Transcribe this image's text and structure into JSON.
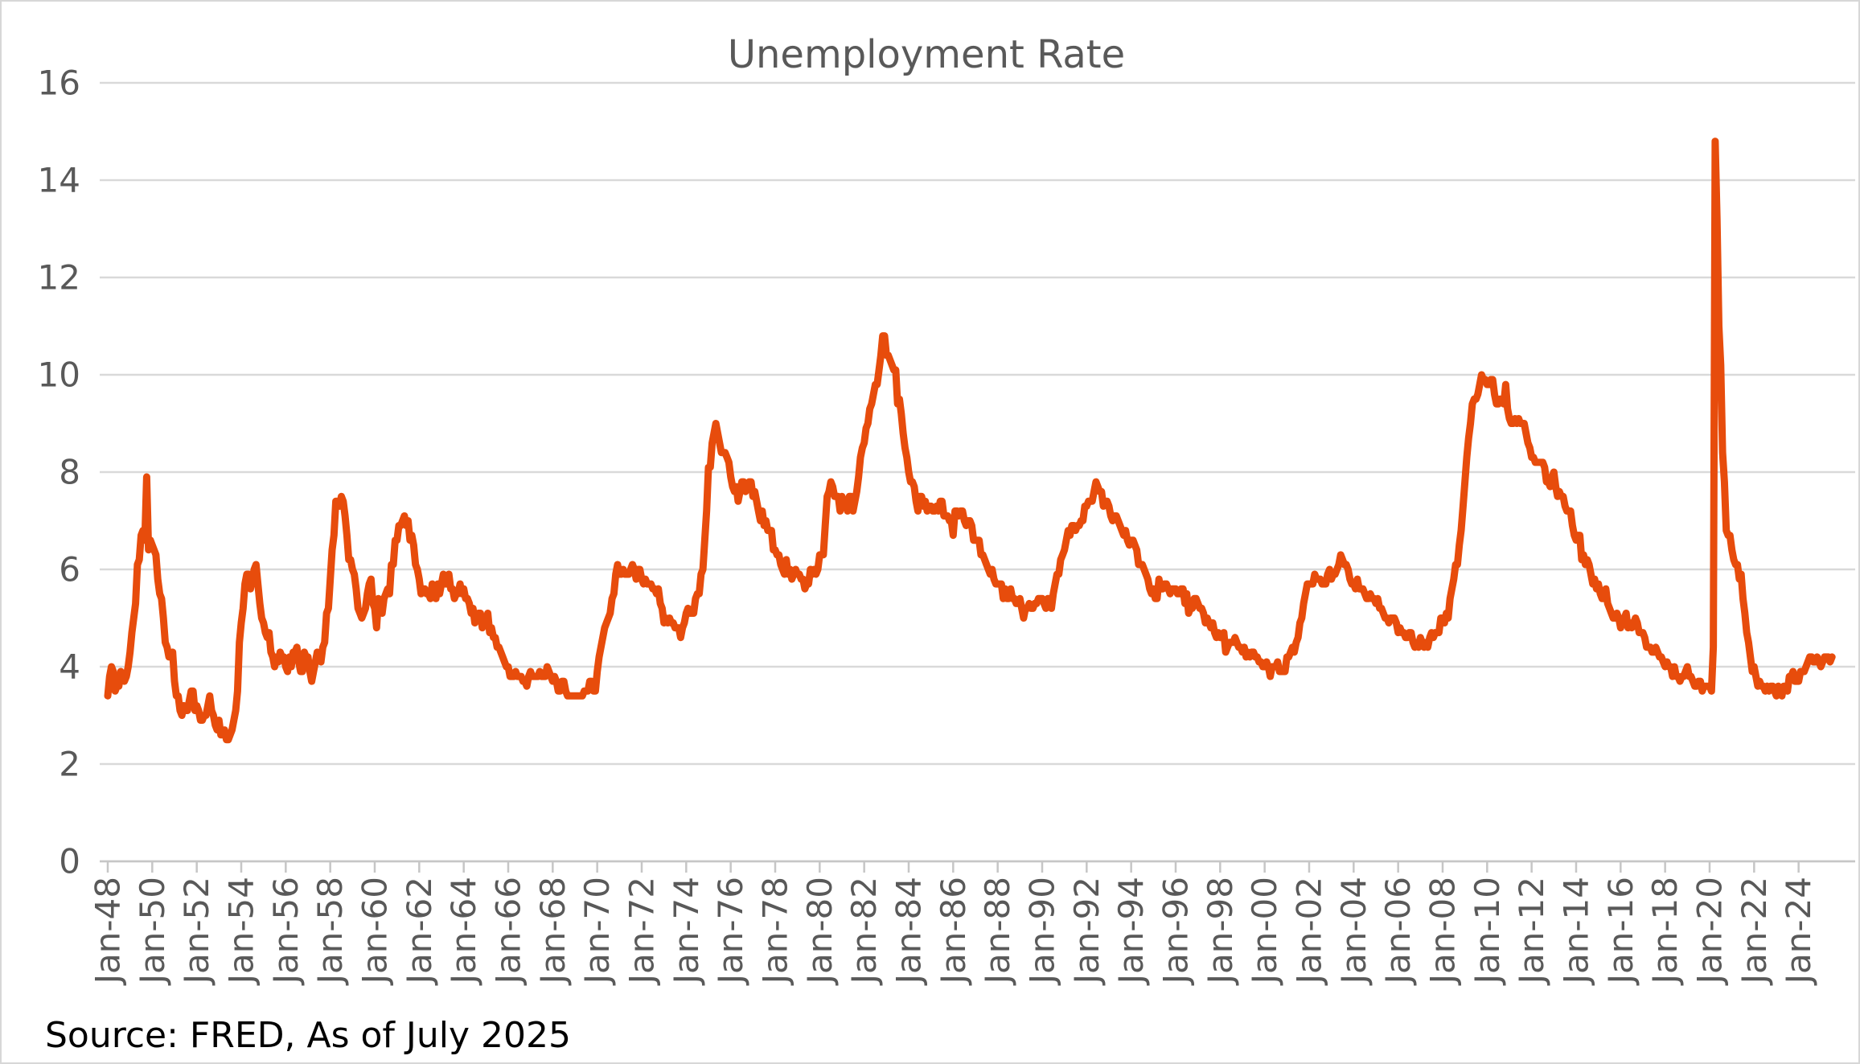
{
  "page": {
    "source_note": "Source: FRED, As of July 2025"
  },
  "colors": {
    "line": "#E74C0C",
    "gridline": "#D9D9D9",
    "axis_line": "#C6C6C6",
    "axis_text": "#595959",
    "title_text": "#595959",
    "source_text": "#000000",
    "background": "#FFFFFF",
    "border": "#D7D7D7"
  },
  "chart_data": {
    "type": "line",
    "title": "Unemployment Rate",
    "series_name": "Unemployment Rate",
    "unit": "percent",
    "frequency": "monthly",
    "x_start": "Jan-1948",
    "x_end": "Jul-2025",
    "grid": "horizontal",
    "legend": "none",
    "ylim": [
      0,
      16
    ],
    "y_ticks": [
      0,
      2,
      4,
      6,
      8,
      10,
      12,
      14,
      16
    ],
    "x_tick_labels": [
      "Jan-48",
      "Jan-50",
      "Jan-52",
      "Jan-54",
      "Jan-56",
      "Jan-58",
      "Jan-60",
      "Jan-62",
      "Jan-64",
      "Jan-66",
      "Jan-68",
      "Jan-70",
      "Jan-72",
      "Jan-74",
      "Jan-76",
      "Jan-78",
      "Jan-80",
      "Jan-82",
      "Jan-84",
      "Jan-86",
      "Jan-88",
      "Jan-90",
      "Jan-92",
      "Jan-94",
      "Jan-96",
      "Jan-98",
      "Jan-00",
      "Jan-02",
      "Jan-04",
      "Jan-06",
      "Jan-08",
      "Jan-10",
      "Jan-12",
      "Jan-14",
      "Jan-16",
      "Jan-18",
      "Jan-20",
      "Jan-22",
      "Jan-24"
    ],
    "values": [
      3.4,
      3.8,
      4.0,
      3.9,
      3.5,
      3.6,
      3.6,
      3.9,
      3.8,
      3.7,
      3.8,
      4.0,
      4.3,
      4.7,
      5.0,
      5.3,
      6.1,
      6.2,
      6.7,
      6.8,
      6.6,
      7.9,
      6.4,
      6.6,
      6.5,
      6.4,
      6.3,
      5.8,
      5.5,
      5.4,
      5.0,
      4.5,
      4.4,
      4.2,
      4.2,
      4.3,
      3.7,
      3.4,
      3.4,
      3.1,
      3.0,
      3.2,
      3.1,
      3.1,
      3.3,
      3.5,
      3.5,
      3.1,
      3.2,
      3.1,
      2.9,
      2.9,
      3.0,
      3.0,
      3.2,
      3.4,
      3.1,
      3.0,
      2.8,
      2.7,
      2.9,
      2.6,
      2.6,
      2.7,
      2.5,
      2.5,
      2.6,
      2.7,
      2.9,
      3.1,
      3.5,
      4.5,
      4.9,
      5.2,
      5.7,
      5.9,
      5.9,
      5.6,
      5.8,
      6.0,
      6.1,
      5.7,
      5.3,
      5.0,
      4.9,
      4.7,
      4.6,
      4.7,
      4.3,
      4.2,
      4.0,
      4.2,
      4.1,
      4.3,
      4.2,
      4.2,
      4.0,
      3.9,
      4.2,
      4.0,
      4.3,
      4.3,
      4.4,
      4.1,
      3.9,
      3.9,
      4.3,
      4.2,
      4.2,
      3.9,
      3.7,
      3.9,
      4.1,
      4.3,
      4.2,
      4.1,
      4.4,
      4.5,
      5.1,
      5.2,
      5.8,
      6.4,
      6.7,
      7.4,
      7.4,
      7.3,
      7.5,
      7.4,
      7.1,
      6.7,
      6.2,
      6.2,
      6.0,
      5.9,
      5.6,
      5.2,
      5.1,
      5.0,
      5.1,
      5.2,
      5.5,
      5.7,
      5.8,
      5.3,
      5.2,
      4.8,
      5.4,
      5.2,
      5.1,
      5.4,
      5.5,
      5.6,
      5.5,
      6.1,
      6.1,
      6.6,
      6.6,
      6.9,
      6.9,
      7.0,
      7.1,
      6.9,
      7.0,
      6.6,
      6.7,
      6.5,
      6.1,
      6.0,
      5.8,
      5.5,
      5.6,
      5.6,
      5.5,
      5.5,
      5.4,
      5.7,
      5.6,
      5.4,
      5.7,
      5.5,
      5.7,
      5.9,
      5.7,
      5.7,
      5.9,
      5.6,
      5.6,
      5.4,
      5.5,
      5.5,
      5.7,
      5.5,
      5.6,
      5.4,
      5.4,
      5.3,
      5.1,
      5.2,
      4.9,
      5.0,
      5.1,
      5.1,
      4.8,
      5.0,
      4.9,
      5.1,
      4.7,
      4.8,
      4.6,
      4.6,
      4.4,
      4.4,
      4.3,
      4.2,
      4.1,
      4.0,
      4.0,
      3.8,
      3.8,
      3.8,
      3.9,
      3.8,
      3.8,
      3.8,
      3.7,
      3.7,
      3.6,
      3.8,
      3.9,
      3.8,
      3.8,
      3.8,
      3.8,
      3.9,
      3.8,
      3.8,
      3.8,
      4.0,
      3.9,
      3.8,
      3.7,
      3.8,
      3.7,
      3.5,
      3.5,
      3.7,
      3.7,
      3.5,
      3.4,
      3.4,
      3.4,
      3.4,
      3.4,
      3.4,
      3.4,
      3.4,
      3.4,
      3.5,
      3.5,
      3.5,
      3.7,
      3.7,
      3.5,
      3.5,
      3.9,
      4.2,
      4.4,
      4.6,
      4.8,
      4.9,
      5.0,
      5.1,
      5.4,
      5.5,
      5.9,
      6.1,
      5.9,
      5.9,
      6.0,
      5.9,
      5.9,
      5.9,
      6.0,
      6.1,
      6.0,
      5.8,
      6.0,
      6.0,
      5.8,
      5.7,
      5.8,
      5.7,
      5.7,
      5.7,
      5.6,
      5.6,
      5.5,
      5.6,
      5.3,
      5.2,
      4.9,
      5.0,
      4.9,
      5.0,
      4.9,
      4.9,
      4.8,
      4.8,
      4.8,
      4.6,
      4.8,
      4.9,
      5.1,
      5.2,
      5.1,
      5.1,
      5.1,
      5.4,
      5.5,
      5.5,
      5.9,
      6.0,
      6.6,
      7.2,
      8.1,
      8.1,
      8.6,
      8.8,
      9.0,
      8.8,
      8.6,
      8.4,
      8.4,
      8.4,
      8.3,
      8.2,
      7.9,
      7.7,
      7.6,
      7.7,
      7.4,
      7.6,
      7.8,
      7.8,
      7.6,
      7.7,
      7.8,
      7.8,
      7.5,
      7.6,
      7.4,
      7.2,
      7.0,
      7.2,
      6.9,
      7.0,
      6.8,
      6.8,
      6.8,
      6.4,
      6.4,
      6.3,
      6.3,
      6.1,
      6.0,
      5.9,
      6.2,
      5.9,
      6.0,
      5.8,
      5.9,
      6.0,
      5.9,
      5.9,
      5.8,
      5.8,
      5.6,
      5.7,
      5.7,
      6.0,
      5.9,
      6.0,
      5.9,
      6.0,
      6.3,
      6.3,
      6.3,
      6.9,
      7.5,
      7.6,
      7.8,
      7.7,
      7.5,
      7.5,
      7.5,
      7.2,
      7.5,
      7.4,
      7.4,
      7.2,
      7.5,
      7.5,
      7.2,
      7.4,
      7.6,
      7.9,
      8.3,
      8.5,
      8.6,
      8.9,
      9.0,
      9.3,
      9.4,
      9.6,
      9.8,
      9.8,
      10.1,
      10.4,
      10.8,
      10.8,
      10.4,
      10.4,
      10.3,
      10.2,
      10.1,
      10.1,
      9.4,
      9.5,
      9.2,
      8.8,
      8.5,
      8.3,
      8.0,
      7.8,
      7.8,
      7.7,
      7.4,
      7.2,
      7.5,
      7.5,
      7.3,
      7.4,
      7.2,
      7.3,
      7.3,
      7.2,
      7.2,
      7.3,
      7.2,
      7.4,
      7.4,
      7.1,
      7.1,
      7.1,
      7.0,
      7.0,
      6.7,
      7.2,
      7.2,
      7.1,
      7.2,
      7.2,
      7.0,
      6.9,
      7.0,
      7.0,
      6.9,
      6.6,
      6.6,
      6.6,
      6.6,
      6.3,
      6.3,
      6.2,
      6.1,
      6.0,
      5.9,
      6.0,
      5.8,
      5.7,
      5.7,
      5.7,
      5.7,
      5.4,
      5.6,
      5.4,
      5.4,
      5.6,
      5.4,
      5.4,
      5.3,
      5.3,
      5.4,
      5.2,
      5.0,
      5.2,
      5.2,
      5.3,
      5.2,
      5.2,
      5.3,
      5.3,
      5.4,
      5.4,
      5.4,
      5.3,
      5.2,
      5.4,
      5.4,
      5.2,
      5.5,
      5.7,
      5.9,
      5.9,
      6.2,
      6.3,
      6.4,
      6.6,
      6.8,
      6.7,
      6.9,
      6.9,
      6.8,
      6.9,
      6.9,
      7.0,
      7.0,
      7.3,
      7.3,
      7.4,
      7.4,
      7.4,
      7.6,
      7.8,
      7.7,
      7.6,
      7.6,
      7.3,
      7.4,
      7.4,
      7.3,
      7.1,
      7.0,
      7.1,
      7.1,
      7.0,
      6.9,
      6.8,
      6.7,
      6.8,
      6.6,
      6.5,
      6.6,
      6.6,
      6.5,
      6.4,
      6.1,
      6.1,
      6.1,
      6.0,
      5.9,
      5.8,
      5.6,
      5.5,
      5.6,
      5.4,
      5.4,
      5.8,
      5.6,
      5.6,
      5.7,
      5.7,
      5.6,
      5.5,
      5.6,
      5.6,
      5.6,
      5.5,
      5.5,
      5.6,
      5.6,
      5.3,
      5.5,
      5.1,
      5.2,
      5.2,
      5.4,
      5.4,
      5.3,
      5.2,
      5.2,
      5.1,
      4.9,
      5.0,
      4.9,
      4.8,
      4.9,
      4.7,
      4.6,
      4.7,
      4.6,
      4.6,
      4.7,
      4.3,
      4.4,
      4.5,
      4.5,
      4.5,
      4.6,
      4.5,
      4.4,
      4.4,
      4.3,
      4.4,
      4.2,
      4.3,
      4.2,
      4.3,
      4.3,
      4.2,
      4.2,
      4.1,
      4.1,
      4.0,
      4.0,
      4.1,
      4.0,
      3.8,
      4.0,
      4.0,
      4.0,
      4.1,
      3.9,
      3.9,
      3.9,
      3.9,
      4.2,
      4.2,
      4.3,
      4.4,
      4.3,
      4.5,
      4.6,
      4.9,
      5.0,
      5.3,
      5.5,
      5.7,
      5.7,
      5.7,
      5.7,
      5.9,
      5.8,
      5.8,
      5.8,
      5.7,
      5.7,
      5.7,
      5.9,
      6.0,
      5.8,
      5.9,
      5.9,
      6.0,
      6.1,
      6.3,
      6.2,
      6.1,
      6.1,
      6.0,
      5.8,
      5.7,
      5.7,
      5.6,
      5.8,
      5.6,
      5.6,
      5.6,
      5.5,
      5.4,
      5.4,
      5.5,
      5.4,
      5.4,
      5.3,
      5.4,
      5.2,
      5.2,
      5.1,
      5.0,
      5.0,
      4.9,
      5.0,
      5.0,
      5.0,
      4.9,
      4.7,
      4.8,
      4.7,
      4.7,
      4.6,
      4.6,
      4.7,
      4.7,
      4.5,
      4.4,
      4.5,
      4.4,
      4.6,
      4.5,
      4.4,
      4.5,
      4.4,
      4.6,
      4.7,
      4.6,
      4.7,
      4.7,
      4.7,
      5.0,
      5.0,
      4.9,
      5.1,
      5.0,
      5.4,
      5.6,
      5.8,
      6.1,
      6.1,
      6.5,
      6.8,
      7.3,
      7.8,
      8.3,
      8.7,
      9.0,
      9.4,
      9.5,
      9.5,
      9.6,
      9.8,
      10.0,
      9.9,
      9.9,
      9.8,
      9.8,
      9.9,
      9.9,
      9.6,
      9.4,
      9.4,
      9.5,
      9.5,
      9.4,
      9.8,
      9.3,
      9.1,
      9.0,
      9.0,
      9.1,
      9.0,
      9.1,
      9.0,
      9.0,
      9.0,
      8.8,
      8.6,
      8.5,
      8.3,
      8.3,
      8.2,
      8.2,
      8.2,
      8.2,
      8.2,
      8.1,
      7.8,
      7.8,
      7.7,
      7.9,
      8.0,
      7.7,
      7.5,
      7.6,
      7.5,
      7.5,
      7.3,
      7.2,
      7.2,
      7.2,
      6.9,
      6.7,
      6.6,
      6.7,
      6.7,
      6.2,
      6.3,
      6.1,
      6.2,
      6.1,
      5.9,
      5.7,
      5.8,
      5.6,
      5.7,
      5.5,
      5.4,
      5.4,
      5.6,
      5.3,
      5.2,
      5.1,
      5.0,
      5.0,
      5.1,
      5.0,
      4.8,
      4.9,
      5.0,
      5.1,
      4.8,
      4.9,
      4.8,
      4.9,
      5.0,
      4.9,
      4.7,
      4.7,
      4.7,
      4.6,
      4.4,
      4.4,
      4.4,
      4.3,
      4.3,
      4.4,
      4.3,
      4.2,
      4.2,
      4.1,
      4.0,
      4.1,
      4.0,
      4.0,
      3.8,
      4.0,
      3.8,
      3.8,
      3.7,
      3.8,
      3.8,
      3.9,
      4.0,
      3.8,
      3.8,
      3.7,
      3.6,
      3.6,
      3.7,
      3.7,
      3.5,
      3.6,
      3.6,
      3.6,
      3.6,
      3.5,
      4.4,
      14.8,
      13.2,
      11.0,
      10.2,
      8.4,
      7.8,
      6.8,
      6.7,
      6.7,
      6.4,
      6.2,
      6.1,
      6.1,
      5.8,
      5.9,
      5.4,
      5.1,
      4.7,
      4.5,
      4.2,
      3.9,
      4.0,
      3.8,
      3.6,
      3.7,
      3.6,
      3.6,
      3.5,
      3.6,
      3.5,
      3.6,
      3.6,
      3.5,
      3.4,
      3.6,
      3.5,
      3.4,
      3.6,
      3.6,
      3.5,
      3.8,
      3.8,
      3.9,
      3.7,
      3.7,
      3.7,
      3.9,
      3.9,
      3.9,
      4.0,
      4.1,
      4.2,
      4.2,
      4.1,
      4.1,
      4.2,
      4.1,
      4.0,
      4.1,
      4.2,
      4.2,
      4.2,
      4.1,
      4.2
    ]
  }
}
